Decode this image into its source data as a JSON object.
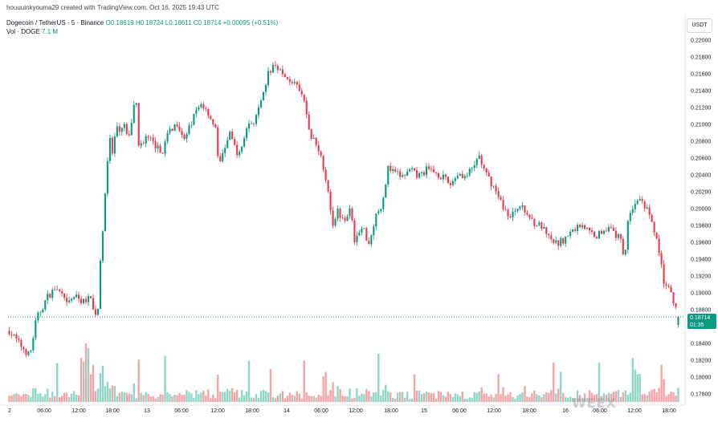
{
  "header": {
    "credit": "houuuinkyouma29 created with TradingView.com, Oct 16, 2025 19:43 UTC",
    "symbol": "Dogecoin / TetherUS · 5 · Binance",
    "ohlc": "O0.18619 H0.18724 L0.18611 C0.18714 +0.00095 (+0.51%)",
    "volume_label": "Vol · DOGE",
    "volume_value": "7.1 M"
  },
  "price_axis": {
    "unit": "USDT",
    "ticks": [
      "0.22000",
      "0.21800",
      "0.21600",
      "0.21400",
      "0.21200",
      "0.21000",
      "0.20800",
      "0.20600",
      "0.20400",
      "0.20200",
      "0.20000",
      "0.19800",
      "0.19600",
      "0.19400",
      "0.19200",
      "0.19000",
      "0.18800",
      "0.18600",
      "0.18400",
      "0.18200",
      "0.18000",
      "0.17800"
    ]
  },
  "current_price": {
    "value": "0.18714",
    "countdown": "01:35"
  },
  "watermark": "WEEX",
  "colors": {
    "up": "#089981",
    "down": "#f23645",
    "up_volume": "#8fd6c7",
    "down_volume": "#f6a3a8",
    "price_label_bg": "#089981"
  },
  "chart_data": {
    "type": "candlestick",
    "title": "Dogecoin / TetherUS · 5 · Binance",
    "interval": "5",
    "exchange": "Binance",
    "y_unit": "USDT",
    "ylim": [
      0.1775,
      0.2215
    ],
    "yticks": [
      0.22,
      0.218,
      0.216,
      0.214,
      0.212,
      0.21,
      0.208,
      0.206,
      0.204,
      0.202,
      0.2,
      0.198,
      0.196,
      0.194,
      0.192,
      0.19,
      0.188,
      0.186,
      0.184,
      0.182,
      0.18,
      0.178
    ],
    "x_tick_labels": [
      "2",
      "06:00",
      "12:00",
      "18:00",
      "13",
      "06:00",
      "12:00",
      "18:00",
      "14",
      "06:00",
      "12:00",
      "18:00",
      "15",
      "06:00",
      "12:00",
      "18:00",
      "16",
      "06:00",
      "12:00",
      "18:00"
    ],
    "last": {
      "open": 0.18619,
      "high": 0.18724,
      "low": 0.18611,
      "close": 0.18714,
      "change": 0.00095,
      "change_pct": 0.51
    },
    "volume_last": "7.1 M",
    "price_path": [
      [
        0,
        0.1855
      ],
      [
        14,
        0.1838
      ],
      [
        26,
        0.1825
      ],
      [
        34,
        0.1868
      ],
      [
        48,
        0.1895
      ],
      [
        58,
        0.1905
      ],
      [
        66,
        0.1898
      ],
      [
        72,
        0.1885
      ],
      [
        82,
        0.1896
      ],
      [
        92,
        0.189
      ],
      [
        102,
        0.1893
      ],
      [
        108,
        0.1872
      ],
      [
        112,
        0.1882
      ],
      [
        115,
        0.1935
      ],
      [
        120,
        0.2005
      ],
      [
        126,
        0.2085
      ],
      [
        130,
        0.2065
      ],
      [
        135,
        0.2095
      ],
      [
        140,
        0.2088
      ],
      [
        146,
        0.2102
      ],
      [
        150,
        0.2075
      ],
      [
        156,
        0.2115
      ],
      [
        160,
        0.2135
      ],
      [
        163,
        0.2072
      ],
      [
        172,
        0.2085
      ],
      [
        182,
        0.2078
      ],
      [
        192,
        0.2065
      ],
      [
        202,
        0.2092
      ],
      [
        212,
        0.2102
      ],
      [
        222,
        0.2082
      ],
      [
        232,
        0.2108
      ],
      [
        242,
        0.2125
      ],
      [
        252,
        0.2112
      ],
      [
        260,
        0.2095
      ],
      [
        265,
        0.2048
      ],
      [
        270,
        0.2068
      ],
      [
        278,
        0.2088
      ],
      [
        290,
        0.2062
      ],
      [
        300,
        0.2098
      ],
      [
        310,
        0.2105
      ],
      [
        318,
        0.2125
      ],
      [
        326,
        0.2158
      ],
      [
        334,
        0.2172
      ],
      [
        340,
        0.2168
      ],
      [
        346,
        0.2155
      ],
      [
        356,
        0.2152
      ],
      [
        364,
        0.2142
      ],
      [
        372,
        0.2128
      ],
      [
        380,
        0.2085
      ],
      [
        388,
        0.2078
      ],
      [
        396,
        0.2052
      ],
      [
        402,
        0.2025
      ],
      [
        408,
        0.1982
      ],
      [
        414,
        0.1998
      ],
      [
        422,
        0.1988
      ],
      [
        430,
        0.1998
      ],
      [
        436,
        0.1962
      ],
      [
        446,
        0.1978
      ],
      [
        454,
        0.1958
      ],
      [
        462,
        0.1992
      ],
      [
        470,
        0.2005
      ],
      [
        478,
        0.2048
      ],
      [
        486,
        0.2042
      ],
      [
        496,
        0.2038
      ],
      [
        506,
        0.2045
      ],
      [
        516,
        0.2038
      ],
      [
        526,
        0.2046
      ],
      [
        536,
        0.2044
      ],
      [
        546,
        0.2038
      ],
      [
        556,
        0.2028
      ],
      [
        566,
        0.2042
      ],
      [
        576,
        0.2038
      ],
      [
        586,
        0.2048
      ],
      [
        592,
        0.2065
      ],
      [
        600,
        0.2042
      ],
      [
        610,
        0.2028
      ],
      [
        620,
        0.2008
      ],
      [
        632,
        0.1988
      ],
      [
        642,
        0.2005
      ],
      [
        652,
        0.1995
      ],
      [
        662,
        0.1984
      ],
      [
        672,
        0.1978
      ],
      [
        682,
        0.1962
      ],
      [
        692,
        0.1958
      ],
      [
        702,
        0.1965
      ],
      [
        712,
        0.1975
      ],
      [
        722,
        0.1982
      ],
      [
        732,
        0.1972
      ],
      [
        742,
        0.1968
      ],
      [
        752,
        0.1978
      ],
      [
        762,
        0.1972
      ],
      [
        768,
        0.1965
      ],
      [
        772,
        0.1968
      ],
      [
        776,
        0.1935
      ],
      [
        780,
        0.1985
      ],
      [
        788,
        0.2005
      ],
      [
        796,
        0.2008
      ],
      [
        804,
        0.2001
      ],
      [
        810,
        0.1982
      ],
      [
        816,
        0.1968
      ],
      [
        822,
        0.1935
      ],
      [
        826,
        0.1912
      ],
      [
        832,
        0.1905
      ],
      [
        838,
        0.1888
      ],
      [
        844,
        0.1872
      ]
    ],
    "series": [
      {
        "name": "Dogecoin / TetherUS",
        "kind": "candles"
      },
      {
        "name": "Vol · DOGE",
        "kind": "volume"
      }
    ]
  }
}
